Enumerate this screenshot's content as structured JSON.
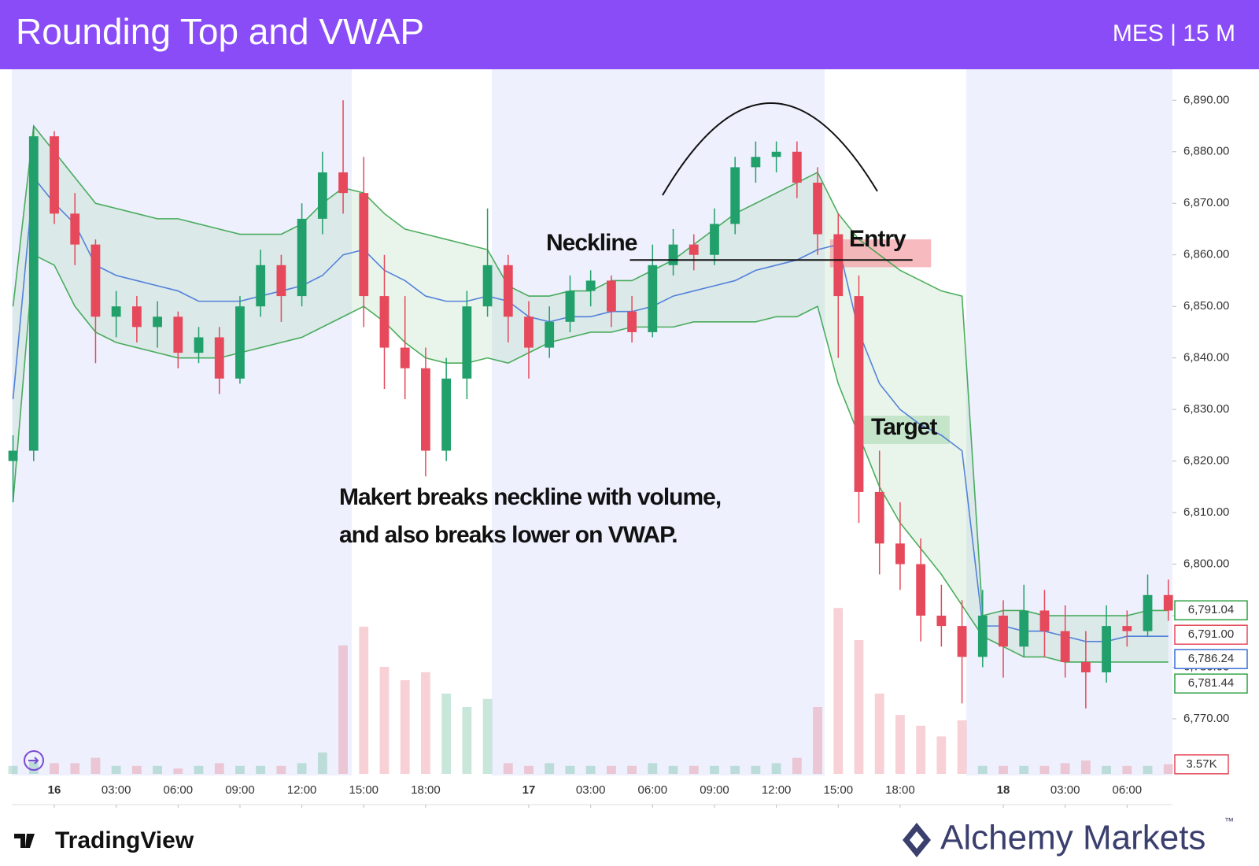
{
  "header": {
    "title": "Rounding Top and VWAP",
    "symbol": "MES | 15 M"
  },
  "footer": {
    "left_brand": "TradingView",
    "right_brand": "Alchemy Markets",
    "trademark": "™"
  },
  "chart_data": {
    "type": "candlestick",
    "x": [
      -2,
      -1,
      0,
      1,
      2,
      3,
      4,
      5,
      6,
      7,
      8,
      9,
      10,
      11,
      12,
      13,
      14,
      15,
      16,
      17,
      18,
      19,
      20,
      21,
      22,
      23,
      24,
      25,
      26,
      27,
      28,
      29,
      30,
      31,
      32,
      33,
      34,
      35,
      36,
      37,
      38,
      39,
      40,
      41,
      42,
      43,
      44,
      45,
      46,
      47,
      48,
      49,
      50,
      51,
      52,
      53,
      54
    ],
    "open": [
      6820,
      6822,
      6883,
      6868,
      6862,
      6848,
      6850,
      6846,
      6848,
      6841,
      6844,
      6836,
      6850,
      6858,
      6852,
      6867,
      6876,
      6872,
      6852,
      6842,
      6838,
      6822,
      6836,
      6850,
      6858,
      6848,
      6842,
      6847,
      6853,
      6855,
      6849,
      6845,
      6858,
      6862,
      6860,
      6866,
      6877,
      6879,
      6880,
      6874,
      6864,
      6852,
      6814,
      6804,
      6800,
      6790,
      6788,
      6782,
      6790,
      6784,
      6791,
      6787,
      6781,
      6779,
      6788,
      6787,
      6794
    ],
    "high": [
      6825,
      6885,
      6884,
      6872,
      6863,
      6853,
      6852,
      6851,
      6849,
      6846,
      6846,
      6852,
      6861,
      6860,
      6870,
      6880,
      6890,
      6879,
      6860,
      6852,
      6842,
      6840,
      6853,
      6869,
      6860,
      6851,
      6850,
      6856,
      6857,
      6856,
      6852,
      6862,
      6865,
      6864,
      6869,
      6879,
      6882,
      6882,
      6882,
      6877,
      6868,
      6856,
      6822,
      6812,
      6805,
      6796,
      6793,
      6795,
      6793,
      6796,
      6795,
      6792,
      6787,
      6792,
      6791,
      6798,
      6797
    ],
    "low": [
      6812,
      6820,
      6866,
      6858,
      6839,
      6844,
      6843,
      6842,
      6838,
      6839,
      6833,
      6835,
      6848,
      6847,
      6850,
      6864,
      6868,
      6846,
      6834,
      6832,
      6817,
      6820,
      6832,
      6848,
      6843,
      6836,
      6840,
      6845,
      6850,
      6846,
      6843,
      6844,
      6856,
      6857,
      6858,
      6864,
      6874,
      6876,
      6871,
      6860,
      6840,
      6808,
      6798,
      6795,
      6785,
      6784,
      6773,
      6780,
      6778,
      6782,
      6782,
      6778,
      6772,
      6777,
      6784,
      6786,
      6789
    ],
    "close": [
      6822,
      6883,
      6868,
      6862,
      6848,
      6850,
      6846,
      6848,
      6841,
      6844,
      6836,
      6850,
      6858,
      6852,
      6867,
      6876,
      6872,
      6852,
      6842,
      6838,
      6822,
      6836,
      6850,
      6858,
      6848,
      6842,
      6847,
      6853,
      6855,
      6849,
      6845,
      6858,
      6862,
      6860,
      6866,
      6877,
      6879,
      6880,
      6874,
      6864,
      6852,
      6814,
      6804,
      6800,
      6790,
      6788,
      6782,
      6790,
      6784,
      6791,
      6787,
      6781,
      6779,
      6788,
      6787,
      6794,
      6791
    ],
    "volume": [
      3,
      5,
      4,
      4,
      6,
      3,
      3,
      3,
      2,
      3,
      4,
      3,
      3,
      3,
      4,
      8,
      48,
      55,
      40,
      35,
      38,
      30,
      25,
      28,
      4,
      3,
      4,
      3,
      3,
      3,
      3,
      4,
      3,
      3,
      3,
      3,
      3,
      4,
      6,
      25,
      62,
      50,
      30,
      22,
      18,
      14,
      20,
      3,
      3,
      3,
      3,
      4,
      5,
      3,
      3,
      3,
      3.57
    ],
    "up_color": "#22a06b",
    "down_color": "#e5495b",
    "series": [
      {
        "color": "#2ea043",
        "values": [
          6850,
          6885,
          6880,
          6875,
          6870,
          6869,
          6868,
          6867,
          6867,
          6866,
          6865,
          6864,
          6864,
          6864,
          6866,
          6870,
          6873,
          6872,
          6868,
          6865,
          6864,
          6863,
          6862,
          6861,
          6854,
          6852,
          6852,
          6853,
          6853,
          6855,
          6855,
          6857,
          6859,
          6862,
          6865,
          6868,
          6870,
          6872,
          6874,
          6876,
          6868,
          6863,
          6860,
          6857,
          6855,
          6853,
          6852,
          6790,
          6791,
          6791,
          6790,
          6790,
          6790,
          6790,
          6790,
          6791,
          6791
        ]
      },
      {
        "color": "#3b6fd8",
        "values": [
          6832,
          6875,
          6870,
          6866,
          6858,
          6856,
          6855,
          6854,
          6853,
          6851,
          6851,
          6851,
          6852,
          6853,
          6854,
          6856,
          6860,
          6861,
          6857,
          6855,
          6852,
          6851,
          6851,
          6852,
          6851,
          6848,
          6847,
          6848,
          6848,
          6849,
          6849,
          6850,
          6852,
          6853,
          6854,
          6855,
          6857,
          6858,
          6859,
          6861,
          6862,
          6845,
          6835,
          6830,
          6827,
          6825,
          6822,
          6788,
          6788,
          6787,
          6787,
          6786,
          6785,
          6785,
          6786,
          6786,
          6786
        ]
      },
      {
        "color": "#2ea043",
        "values": [
          6812,
          6860,
          6858,
          6850,
          6845,
          6843,
          6842,
          6841,
          6840,
          6840,
          6840,
          6841,
          6842,
          6843,
          6844,
          6846,
          6848,
          6850,
          6847,
          6843,
          6840,
          6839,
          6839,
          6840,
          6839,
          6841,
          6843,
          6844,
          6845,
          6845,
          6846,
          6846,
          6846,
          6847,
          6847,
          6847,
          6847,
          6848,
          6848,
          6850,
          6835,
          6825,
          6815,
          6808,
          6803,
          6798,
          6792,
          6786,
          6784,
          6782,
          6782,
          6781,
          6781,
          6781,
          6781,
          6781,
          6781
        ]
      }
    ],
    "xlim": [
      -2.06,
      54.2
    ],
    "ylim": [
      6759,
      6896
    ],
    "yticks": [
      {
        "value": 6770,
        "label": "6,770.00"
      },
      {
        "value": 6780,
        "label": "6,780.00"
      },
      {
        "value": 6790,
        "label": "6,790.00"
      },
      {
        "value": 6800,
        "label": "6,800.00"
      },
      {
        "value": 6810,
        "label": "6,810.00"
      },
      {
        "value": 6820,
        "label": "6,820.00"
      },
      {
        "value": 6830,
        "label": "6,830.00"
      },
      {
        "value": 6840,
        "label": "6,840.00"
      },
      {
        "value": 6850,
        "label": "6,850.00"
      },
      {
        "value": 6860,
        "label": "6,860.00"
      },
      {
        "value": 6870,
        "label": "6,870.00"
      },
      {
        "value": 6880,
        "label": "6,880.00"
      },
      {
        "value": 6890,
        "label": "6,890.00"
      }
    ],
    "xticks": [
      {
        "value": 0,
        "label": "16"
      },
      {
        "value": 3,
        "label": "03:00"
      },
      {
        "value": 6,
        "label": "06:00"
      },
      {
        "value": 9,
        "label": "09:00"
      },
      {
        "value": 12,
        "label": "12:00"
      },
      {
        "value": 15,
        "label": "15:00"
      },
      {
        "value": 18,
        "label": "18:00"
      },
      {
        "value": 23,
        "label": "17"
      },
      {
        "value": 26,
        "label": "03:00"
      },
      {
        "value": 29,
        "label": "06:00"
      },
      {
        "value": 32,
        "label": "09:00"
      },
      {
        "value": 35,
        "label": "12:00"
      },
      {
        "value": 38,
        "label": "15:00"
      },
      {
        "value": 41,
        "label": "18:00"
      },
      {
        "value": 46,
        "label": "18"
      },
      {
        "value": 49,
        "label": "03:00"
      },
      {
        "value": 52,
        "label": "06:00"
      }
    ],
    "price_markers": [
      {
        "value": 6791.04,
        "label": "6,791.04",
        "color": "#2ea043"
      },
      {
        "value": 6791.0,
        "label": "6,791.00",
        "color": "#e5495b"
      },
      {
        "value": 6786.24,
        "label": "6,786.24",
        "color": "#3b6fd8"
      },
      {
        "value": 6781.44,
        "label": "6,781.44",
        "color": "#2ea043"
      }
    ],
    "volume_marker": {
      "value": 3.57,
      "label": "3.57K",
      "color": "#e5495b"
    },
    "neckline": {
      "label": "Neckline",
      "value": 6859,
      "x": [
        27.9,
        41.6
      ]
    },
    "zones": [
      {
        "label": "Entry",
        "x": [
          37.6,
          42.5
        ],
        "y": [
          6857.6,
          6863
        ],
        "color": "#f4a3a8"
      },
      {
        "label": "Target",
        "x": [
          38.8,
          43.4
        ],
        "y": [
          6823.3,
          6828.8
        ],
        "color": "#b8dfc0"
      }
    ],
    "annotation": [
      "Makert breaks neckline with volume,",
      "and also breaks lower on VWAP."
    ]
  }
}
